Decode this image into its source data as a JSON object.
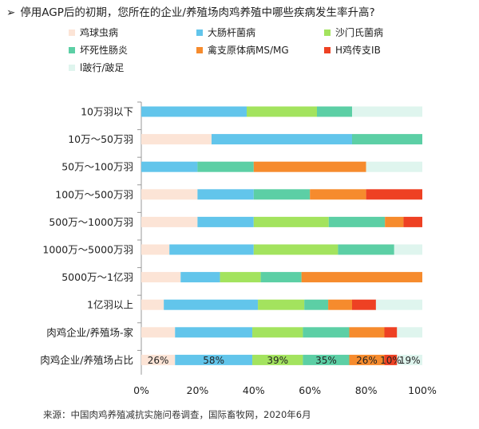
{
  "title": {
    "arrow": "➢",
    "text": "停用AGP后的初期，您所在的企业/养殖场肉鸡养殖中哪些疾病发生率升高?"
  },
  "source": "来源：中国肉鸡养殖减抗实施问卷调查，国际畜牧网，2020年6月",
  "chart_data": {
    "type": "bar",
    "orientation": "horizontal",
    "stacked": true,
    "categories": [
      "10万羽以下",
      "10万～50万羽",
      "50万～100万羽",
      "100万～500万羽",
      "500万～1000万羽",
      "1000万～5000万羽",
      "5000万～1亿羽",
      "1亿羽以上",
      "肉鸡企业/养殖场-家",
      "肉鸡企业/养殖场占比"
    ],
    "series": [
      {
        "name": "鸡球虫病",
        "color": "#FCE4D6",
        "values": [
          0,
          25,
          0,
          20,
          20,
          10,
          14,
          8,
          12,
          12
        ]
      },
      {
        "name": "大肠杆菌病",
        "color": "#62C5EB",
        "values": [
          37.5,
          50,
          20,
          20,
          20,
          30,
          14,
          33.5,
          27.5,
          27.5
        ]
      },
      {
        "name": "沙门氏菌病",
        "color": "#A3E35E",
        "values": [
          25,
          0,
          0,
          0,
          26.7,
          30,
          14.5,
          16.5,
          18,
          18
        ]
      },
      {
        "name": "坏死性肠炎",
        "color": "#5CCFA5",
        "values": [
          12.5,
          25,
          20,
          20,
          20,
          20,
          14.5,
          8.5,
          16.5,
          16.5
        ]
      },
      {
        "name": "禽支原体病MS/MG",
        "color": "#F68B2D",
        "values": [
          0,
          0,
          40,
          20,
          6.6,
          0,
          43,
          8.5,
          12.5,
          12.5
        ]
      },
      {
        "name": "H鸡传支IB",
        "color": "#EE4123",
        "values": [
          0,
          0,
          0,
          20,
          6.7,
          0,
          0,
          8.5,
          4.5,
          4.5
        ]
      },
      {
        "name": "l跛行/跛足",
        "color": "#DFF5EE",
        "values": [
          25,
          0,
          20,
          0,
          0,
          10,
          0,
          16.5,
          9,
          9
        ]
      }
    ],
    "data_labels": {
      "category": "肉鸡企业/养殖场占比",
      "labels": [
        "26%",
        "58%",
        "39%",
        "35%",
        "26%",
        "10%",
        "19%"
      ]
    },
    "xlim": [
      0,
      100
    ],
    "xticks": [
      "0%",
      "20%",
      "40%",
      "60%",
      "80%",
      "100%"
    ],
    "legend_position": "top",
    "grid": false
  }
}
